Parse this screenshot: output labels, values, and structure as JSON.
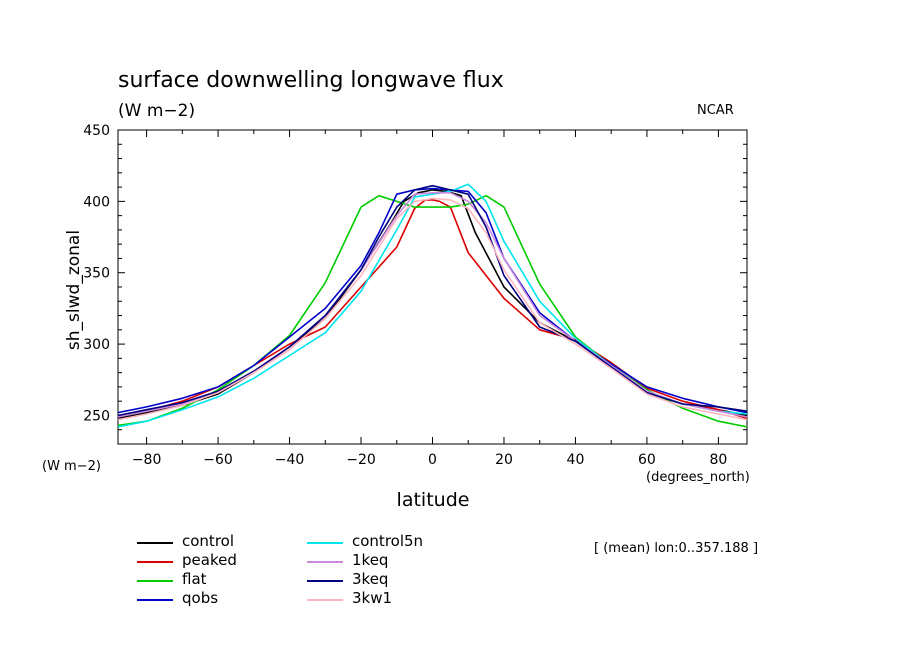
{
  "header": {
    "title": "surface downwelling longwave flux",
    "units": "(W m−2)",
    "org": "NCAR",
    "y_units": "(W m−2)",
    "x_units": "(degrees_north)",
    "note": "[ (mean) lon:0..357.188 ]"
  },
  "chart_data": {
    "type": "line",
    "title": "surface downwelling longwave flux",
    "xlabel": "latitude",
    "ylabel": "sh_slwd_zonal",
    "xlim": [
      -88,
      88
    ],
    "ylim": [
      230,
      450
    ],
    "xticks": [
      -80,
      -60,
      -40,
      -20,
      0,
      20,
      40,
      60,
      80
    ],
    "yticks": [
      250,
      300,
      350,
      400,
      450
    ],
    "grid": false,
    "legend": "bottom-left",
    "series": [
      {
        "name": "control",
        "color": "#000000",
        "x": [
          -88,
          -80,
          -70,
          -60,
          -50,
          -40,
          -30,
          -20,
          -12,
          -8,
          -4,
          0,
          4,
          8,
          12,
          20,
          30,
          40,
          50,
          60,
          70,
          80,
          88
        ],
        "y": [
          248,
          252,
          257,
          265,
          280,
          298,
          318,
          352,
          383,
          400,
          406,
          408,
          407,
          404,
          378,
          340,
          315,
          302,
          285,
          266,
          258,
          254,
          250
        ]
      },
      {
        "name": "peaked",
        "color": "#dd0000",
        "x": [
          -88,
          -80,
          -70,
          -60,
          -50,
          -40,
          -30,
          -20,
          -10,
          -5,
          -2,
          0,
          2,
          5,
          10,
          20,
          30,
          40,
          50,
          60,
          70,
          80,
          88
        ],
        "y": [
          250,
          253,
          260,
          270,
          285,
          300,
          312,
          340,
          368,
          395,
          401,
          401,
          400,
          396,
          364,
          332,
          310,
          303,
          287,
          269,
          260,
          254,
          248
        ]
      },
      {
        "name": "flat",
        "color": "#00cc00",
        "x": [
          -88,
          -80,
          -70,
          -60,
          -50,
          -40,
          -30,
          -20,
          -15,
          -10,
          -5,
          0,
          5,
          10,
          15,
          20,
          30,
          40,
          50,
          60,
          70,
          80,
          88
        ],
        "y": [
          243,
          246,
          255,
          268,
          285,
          306,
          343,
          396,
          404,
          400,
          396,
          396,
          396,
          398,
          404,
          396,
          342,
          305,
          285,
          268,
          255,
          246,
          242
        ]
      },
      {
        "name": "qobs",
        "color": "#0000cc",
        "x": [
          -88,
          -80,
          -70,
          -60,
          -50,
          -40,
          -30,
          -20,
          -15,
          -10,
          -5,
          0,
          5,
          10,
          15,
          20,
          30,
          40,
          50,
          60,
          70,
          80,
          88
        ],
        "y": [
          252,
          256,
          262,
          270,
          285,
          305,
          325,
          355,
          378,
          405,
          408,
          409,
          408,
          407,
          392,
          360,
          322,
          302,
          286,
          270,
          262,
          256,
          252
        ]
      },
      {
        "name": "control5n",
        "color": "#00e5ee",
        "x": [
          -88,
          -80,
          -70,
          -60,
          -50,
          -40,
          -30,
          -20,
          -10,
          -5,
          0,
          5,
          10,
          15,
          20,
          30,
          40,
          50,
          60,
          70,
          80,
          88
        ],
        "y": [
          242,
          246,
          254,
          263,
          276,
          292,
          308,
          337,
          380,
          403,
          405,
          407,
          412,
          400,
          372,
          330,
          304,
          285,
          267,
          258,
          253,
          251
        ]
      },
      {
        "name": "1keq",
        "color": "#cc88dd",
        "x": [
          -88,
          -80,
          -70,
          -60,
          -50,
          -40,
          -30,
          -20,
          -10,
          -5,
          0,
          5,
          10,
          15,
          20,
          30,
          40,
          50,
          60,
          70,
          80,
          88
        ],
        "y": [
          249,
          253,
          258,
          266,
          280,
          298,
          320,
          352,
          390,
          405,
          406,
          406,
          400,
          385,
          360,
          320,
          302,
          285,
          267,
          258,
          253,
          249
        ]
      },
      {
        "name": "3keq",
        "color": "#000080",
        "x": [
          -88,
          -80,
          -70,
          -60,
          -50,
          -40,
          -30,
          -20,
          -15,
          -10,
          -5,
          0,
          5,
          10,
          15,
          20,
          30,
          40,
          50,
          60,
          70,
          80,
          88
        ],
        "y": [
          250,
          254,
          259,
          267,
          281,
          298,
          320,
          352,
          375,
          396,
          408,
          411,
          408,
          405,
          382,
          348,
          312,
          302,
          284,
          266,
          258,
          256,
          253
        ]
      },
      {
        "name": "3kw1",
        "color": "#ffb6c1",
        "x": [
          -88,
          -80,
          -70,
          -60,
          -50,
          -40,
          -30,
          -20,
          -10,
          -5,
          0,
          5,
          10,
          15,
          20,
          30,
          40,
          50,
          60,
          70,
          80,
          88
        ],
        "y": [
          247,
          251,
          257,
          266,
          280,
          296,
          318,
          348,
          388,
          400,
          402,
          401,
          395,
          378,
          352,
          315,
          300,
          283,
          265,
          256,
          251,
          247
        ]
      }
    ]
  }
}
